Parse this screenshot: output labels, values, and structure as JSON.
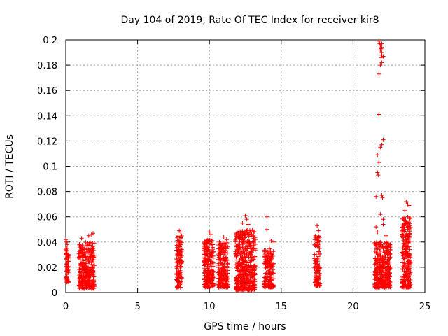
{
  "chart_data": {
    "type": "scatter",
    "title": "Day 104 of 2019, Rate Of TEC Index for receiver kir8",
    "xlabel": "GPS time / hours",
    "ylabel": "ROTI / TECUs",
    "xlim": [
      0,
      25
    ],
    "ylim": [
      0,
      0.2
    ],
    "xticks": [
      0,
      5,
      10,
      15,
      20,
      25
    ],
    "xtick_labels": [
      "0",
      "5",
      "10",
      "15",
      "20",
      "25"
    ],
    "yticks": [
      0,
      0.02,
      0.04,
      0.06,
      0.08,
      0.1,
      0.12,
      0.14,
      0.16,
      0.18,
      0.2
    ],
    "ytick_labels": [
      "0",
      "0.02",
      "0.04",
      "0.06",
      "0.08",
      "0.1",
      "0.12",
      "0.14",
      "0.16",
      "0.18",
      "0.2"
    ],
    "grid": true,
    "marker": "plus",
    "color": "#ff0000",
    "clusters": [
      {
        "x_start": 0.0,
        "x_end": 0.2,
        "y_min": 0.008,
        "y_max": 0.035,
        "count": 60
      },
      {
        "x_start": 0.9,
        "x_end": 2.0,
        "y_min": 0.003,
        "y_max": 0.04,
        "count": 320
      },
      {
        "x_start": 7.7,
        "x_end": 8.1,
        "y_min": 0.004,
        "y_max": 0.045,
        "count": 120
      },
      {
        "x_start": 9.6,
        "x_end": 10.3,
        "y_min": 0.004,
        "y_max": 0.042,
        "count": 220
      },
      {
        "x_start": 10.6,
        "x_end": 11.3,
        "y_min": 0.004,
        "y_max": 0.04,
        "count": 220
      },
      {
        "x_start": 11.8,
        "x_end": 13.2,
        "y_min": 0.002,
        "y_max": 0.05,
        "count": 480
      },
      {
        "x_start": 13.8,
        "x_end": 14.5,
        "y_min": 0.004,
        "y_max": 0.035,
        "count": 160
      },
      {
        "x_start": 17.3,
        "x_end": 17.7,
        "y_min": 0.005,
        "y_max": 0.045,
        "count": 110
      },
      {
        "x_start": 21.5,
        "x_end": 22.6,
        "y_min": 0.004,
        "y_max": 0.04,
        "count": 340
      },
      {
        "x_start": 23.4,
        "x_end": 24.0,
        "y_min": 0.004,
        "y_max": 0.06,
        "count": 260
      }
    ],
    "points": [
      [
        0.0,
        0.042
      ],
      [
        0.05,
        0.04
      ],
      [
        0.1,
        0.038
      ],
      [
        1.1,
        0.043
      ],
      [
        1.6,
        0.045
      ],
      [
        1.8,
        0.046
      ],
      [
        1.9,
        0.047
      ],
      [
        7.9,
        0.049
      ],
      [
        8.0,
        0.048
      ],
      [
        10.0,
        0.048
      ],
      [
        10.1,
        0.046
      ],
      [
        11.0,
        0.044
      ],
      [
        11.2,
        0.042
      ],
      [
        12.3,
        0.055
      ],
      [
        12.5,
        0.061
      ],
      [
        12.6,
        0.058
      ],
      [
        12.7,
        0.054
      ],
      [
        14.0,
        0.06
      ],
      [
        14.0,
        0.05
      ],
      [
        14.3,
        0.041
      ],
      [
        14.5,
        0.04
      ],
      [
        17.5,
        0.053
      ],
      [
        17.6,
        0.049
      ],
      [
        21.6,
        0.052
      ],
      [
        21.7,
        0.048
      ],
      [
        21.6,
        0.076
      ],
      [
        22.0,
        0.077
      ],
      [
        22.05,
        0.075
      ],
      [
        21.9,
        0.062
      ],
      [
        22.1,
        0.058
      ],
      [
        22.1,
        0.054
      ],
      [
        22.3,
        0.045
      ],
      [
        21.7,
        0.095
      ],
      [
        21.75,
        0.093
      ],
      [
        21.8,
        0.103
      ],
      [
        21.7,
        0.109
      ],
      [
        21.9,
        0.115
      ],
      [
        22.0,
        0.117
      ],
      [
        22.1,
        0.121
      ],
      [
        21.8,
        0.141
      ],
      [
        21.8,
        0.173
      ],
      [
        21.9,
        0.18
      ],
      [
        22.0,
        0.182
      ],
      [
        21.95,
        0.186
      ],
      [
        22.0,
        0.188
      ],
      [
        22.1,
        0.187
      ],
      [
        21.9,
        0.192
      ],
      [
        22.0,
        0.194
      ],
      [
        21.9,
        0.196
      ],
      [
        22.0,
        0.197
      ],
      [
        21.8,
        0.199
      ],
      [
        21.85,
        0.197
      ],
      [
        21.95,
        0.193
      ],
      [
        22.0,
        0.19
      ],
      [
        23.6,
        0.065
      ],
      [
        23.7,
        0.072
      ],
      [
        23.8,
        0.07
      ],
      [
        23.9,
        0.069
      ]
    ]
  }
}
